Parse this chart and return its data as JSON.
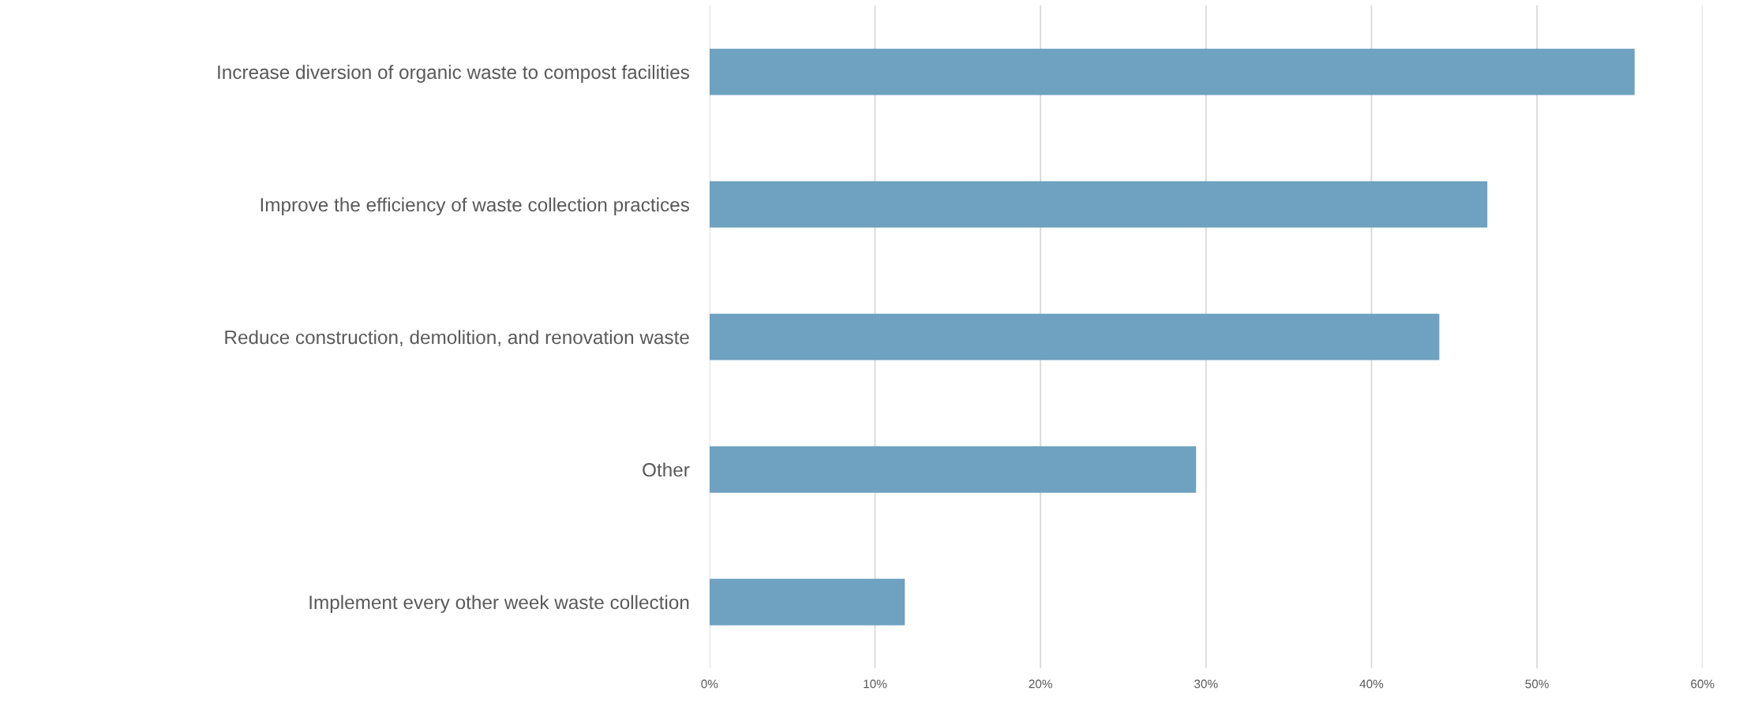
{
  "chart_data": {
    "type": "bar",
    "orientation": "horizontal",
    "categories": [
      "Increase diversion of organic waste to compost facilities",
      "Improve the efficiency of waste collection practices",
      "Reduce construction, demolition, and renovation waste",
      "Other",
      "Implement every other week waste collection"
    ],
    "values": [
      55.9,
      47.0,
      44.1,
      29.4,
      11.8
    ],
    "color": "#6fa1c0",
    "xlim": [
      0,
      60
    ],
    "xticks": [
      {
        "value": 0,
        "label": "0%"
      },
      {
        "value": 10,
        "label": "10%"
      },
      {
        "value": 20,
        "label": "20%"
      },
      {
        "value": 30,
        "label": "30%"
      },
      {
        "value": 40,
        "label": "40%"
      },
      {
        "value": 50,
        "label": "50%"
      },
      {
        "value": 60,
        "label": "60%"
      }
    ],
    "grid": "x",
    "legend": false
  }
}
